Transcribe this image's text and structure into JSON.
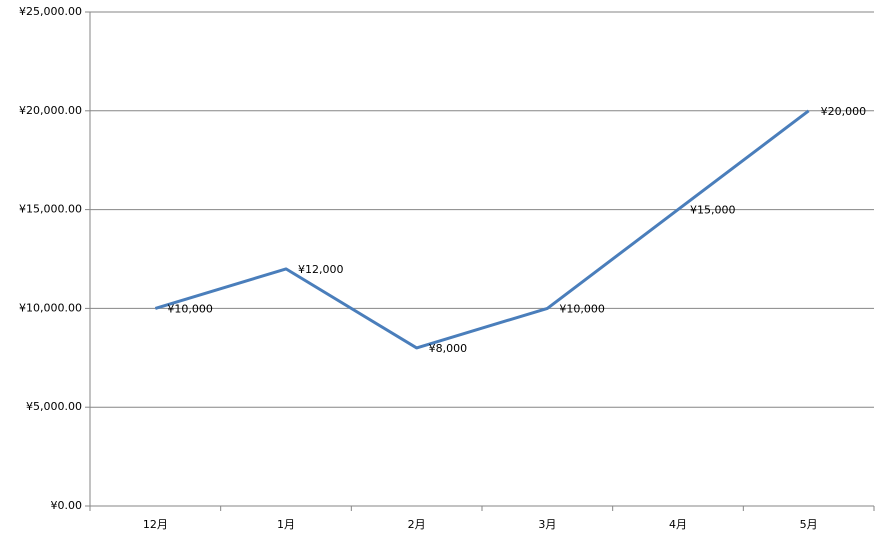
{
  "chart_data": {
    "type": "line",
    "categories": [
      "12月",
      "1月",
      "2月",
      "3月",
      "4月",
      "5月"
    ],
    "series": [
      {
        "color": "#4a7ebb",
        "values": [
          10000,
          12000,
          8000,
          10000,
          15000,
          20000
        ],
        "value_labels": [
          "¥10,000",
          "¥12,000",
          "¥8,000",
          "¥10,000",
          "¥15,000",
          "¥20,000"
        ]
      }
    ],
    "ylim": [
      0,
      25000
    ],
    "yticks": [
      {
        "value": 0,
        "label": "¥0.00"
      },
      {
        "value": 5000,
        "label": "¥5,000.00"
      },
      {
        "value": 10000,
        "label": "¥10,000.00"
      },
      {
        "value": 15000,
        "label": "¥15,000.00"
      },
      {
        "value": 20000,
        "label": "¥20,000.00"
      },
      {
        "value": 25000,
        "label": "¥25,000.00"
      }
    ],
    "grid": true
  }
}
